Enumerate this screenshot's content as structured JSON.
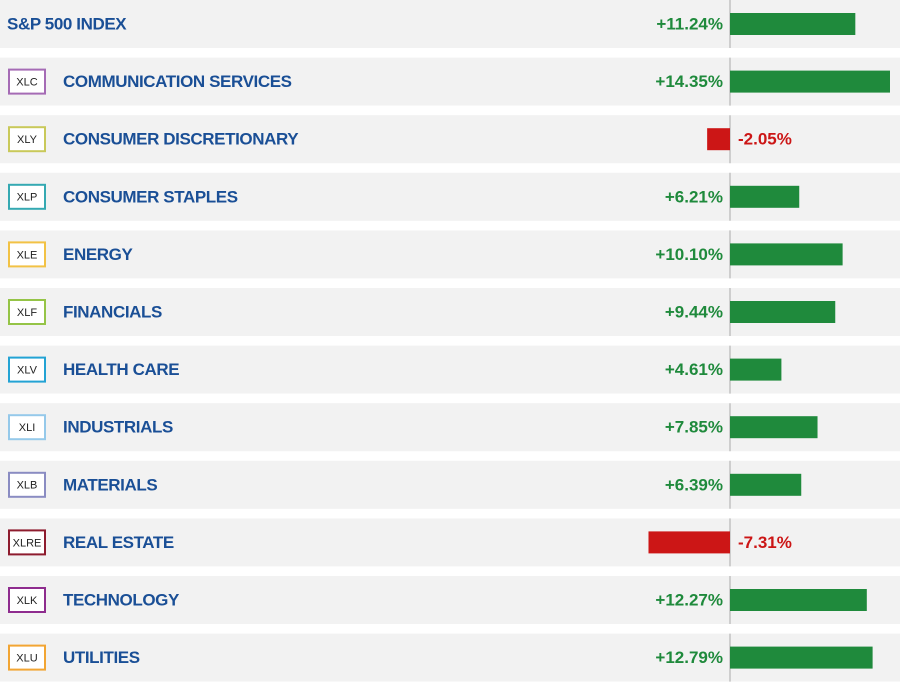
{
  "chart_data": {
    "type": "bar",
    "categories": [
      "S&P 500 INDEX",
      "COMMUNICATION SERVICES",
      "CONSUMER DISCRETIONARY",
      "CONSUMER STAPLES",
      "ENERGY",
      "FINANCIALS",
      "HEALTH CARE",
      "INDUSTRIALS",
      "MATERIALS",
      "REAL ESTATE",
      "TECHNOLOGY",
      "UTILITIES"
    ],
    "tickers": [
      null,
      "XLC",
      "XLY",
      "XLP",
      "XLE",
      "XLF",
      "XLV",
      "XLI",
      "XLB",
      "XLRE",
      "XLK",
      "XLU"
    ],
    "ticker_colors": [
      null,
      "#a56bb5",
      "#c9c95a",
      "#35a9b2",
      "#f2c245",
      "#95c447",
      "#23a3d4",
      "#95c9ea",
      "#8a8cc2",
      "#8e1c2e",
      "#8e2c8e",
      "#f2a533"
    ],
    "values": [
      11.24,
      14.35,
      -2.05,
      6.21,
      10.1,
      9.44,
      4.61,
      7.85,
      6.39,
      -7.31,
      12.27,
      12.79
    ],
    "value_labels": [
      "+11.24%",
      "+14.35%",
      "-2.05%",
      "+6.21%",
      "+10.10%",
      "+9.44%",
      "+4.61%",
      "+7.85%",
      "+6.39%",
      "-7.31%",
      "+12.27%",
      "+12.79%"
    ],
    "positive_color": "#1f8a3c",
    "negative_color": "#cc1616"
  }
}
